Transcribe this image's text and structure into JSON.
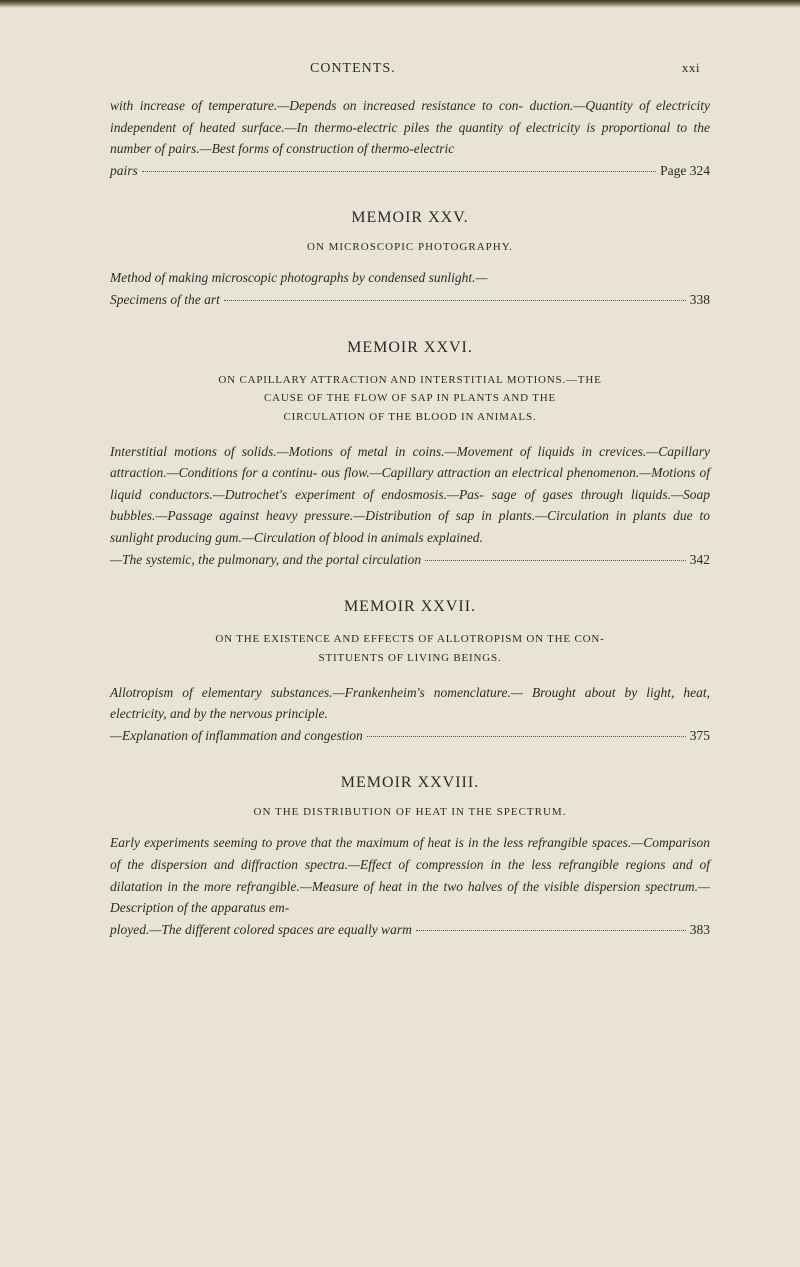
{
  "page": {
    "header_title": "CONTENTS.",
    "page_number": "xxi",
    "background_color": "#e8e3d5",
    "text_color": "#2a2a2a",
    "font_family": "Georgia, Times New Roman, serif",
    "body_fontsize": 13.5,
    "title_fontsize": 16,
    "subtitle_fontsize": 11
  },
  "section_intro": {
    "abstract_line1": "with increase of temperature.—Depends on increased resistance to con-",
    "abstract_line2": "duction.—Quantity of electricity independent of heated surface.—In",
    "abstract_line3": "thermo-electric piles the quantity of electricity is proportional to",
    "abstract_line4": "the number of pairs.—Best forms of construction of thermo-electric",
    "abstract_prefix": "pairs",
    "page_ref": "Page 324"
  },
  "memoir_xxv": {
    "title": "MEMOIR XXV.",
    "subtitle": "ON MICROSCOPIC PHOTOGRAPHY.",
    "abstract_line1": "Method of making microscopic photographs by condensed sunlight.—",
    "abstract_prefix": "Specimens of the art",
    "page_ref": "338"
  },
  "memoir_xxvi": {
    "title": "MEMOIR XXVI.",
    "subtitle_line1": "ON CAPILLARY ATTRACTION AND INTERSTITIAL MOTIONS.—THE",
    "subtitle_line2": "CAUSE OF THE FLOW OF SAP IN PLANTS AND THE",
    "subtitle_line3": "CIRCULATION OF THE BLOOD IN ANIMALS.",
    "abstract_line1": "Interstitial motions of solids.—Motions of metal in coins.—Movement of",
    "abstract_line2": "liquids in crevices.—Capillary attraction.—Conditions for a continu-",
    "abstract_line3": "ous flow.—Capillary attraction an electrical phenomenon.—Motions",
    "abstract_line4": "of liquid conductors.—Dutrochet's experiment of endosmosis.—Pas-",
    "abstract_line5": "sage of gases through liquids.—Soap bubbles.—Passage against heavy",
    "abstract_line6": "pressure.—Distribution of sap in plants.—Circulation in plants due to",
    "abstract_line7": "sunlight producing gum.—Circulation of blood in animals explained.",
    "abstract_prefix": "—The systemic, the pulmonary, and the portal circulation",
    "page_ref": "342"
  },
  "memoir_xxvii": {
    "title": "MEMOIR XXVII.",
    "subtitle_line1": "ON THE EXISTENCE AND EFFECTS OF ALLOTROPISM ON THE CON-",
    "subtitle_line2": "STITUENTS OF LIVING BEINGS.",
    "abstract_line1": "Allotropism of elementary substances.—Frankenheim's nomenclature.—",
    "abstract_line2": "Brought about by light, heat, electricity, and by the nervous principle.",
    "abstract_prefix": "—Explanation of inflammation and congestion",
    "page_ref": "375"
  },
  "memoir_xxviii": {
    "title": "MEMOIR XXVIII.",
    "subtitle": "ON THE DISTRIBUTION OF HEAT IN THE SPECTRUM.",
    "abstract_line1": "Early experiments seeming to prove that the maximum of heat is in the",
    "abstract_line2": "less refrangible spaces.—Comparison of the dispersion and diffraction",
    "abstract_line3": "spectra.—Effect of compression in the less refrangible regions and of",
    "abstract_line4": "dilatation in the more refrangible.—Measure of heat in the two halves",
    "abstract_line5": "of the visible dispersion spectrum.—Description of the apparatus em-",
    "abstract_prefix": "ployed.—The different colored spaces are equally warm",
    "page_ref": "383"
  }
}
